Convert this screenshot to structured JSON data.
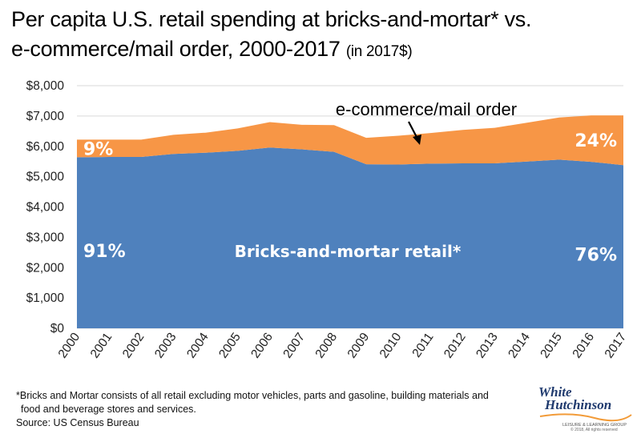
{
  "title": {
    "line1": "Per capita U.S. retail spending at bricks-and-mortar* vs.",
    "line2": "e-commerce/mail order, 2000-2017",
    "unit": "(in 2017$)"
  },
  "chart_data": {
    "type": "area",
    "stacked": true,
    "x": [
      "2000",
      "2001",
      "2002",
      "2003",
      "2004",
      "2005",
      "2006",
      "2007",
      "2008",
      "2009",
      "2010",
      "2011",
      "2012",
      "2013",
      "2014",
      "2015",
      "2016",
      "2017"
    ],
    "series": [
      {
        "name": "Bricks-and-mortar retail*",
        "color": "#4f81bd",
        "values": [
          5640,
          5650,
          5650,
          5750,
          5790,
          5850,
          5960,
          5900,
          5820,
          5410,
          5400,
          5430,
          5440,
          5440,
          5500,
          5560,
          5490,
          5380
        ]
      },
      {
        "name": "e-commerce/mail order",
        "color": "#f79646",
        "values": [
          580,
          570,
          570,
          630,
          660,
          740,
          840,
          810,
          880,
          870,
          950,
          1010,
          1100,
          1170,
          1280,
          1390,
          1530,
          1640
        ]
      }
    ],
    "ylim": [
      0,
      8000
    ],
    "yticks": [
      "$0",
      "$1,000",
      "$2,000",
      "$3,000",
      "$4,000",
      "$5,000",
      "$6,000",
      "$7,000",
      "$8,000"
    ],
    "grid": true,
    "annotations": [
      {
        "text": "9%",
        "series": "e-commerce/mail order",
        "x": "2000"
      },
      {
        "text": "91%",
        "series": "Bricks-and-mortar retail*",
        "x": "2000"
      },
      {
        "text": "24%",
        "series": "e-commerce/mail order",
        "x": "2017"
      },
      {
        "text": "76%",
        "series": "Bricks-and-mortar retail*",
        "x": "2017"
      }
    ]
  },
  "footnote": {
    "line1": "*Bricks and Mortar consists of all retail excluding motor vehicles, parts and gasoline, building materials and",
    "line2": "food and beverage stores and services.",
    "source": "Source: US Census Bureau"
  },
  "logo": {
    "word1": "White",
    "word2": "Hutchinson",
    "tagline": "LEISURE & LEARNING GROUP",
    "copyright": "© 2018, All rights reserved"
  }
}
